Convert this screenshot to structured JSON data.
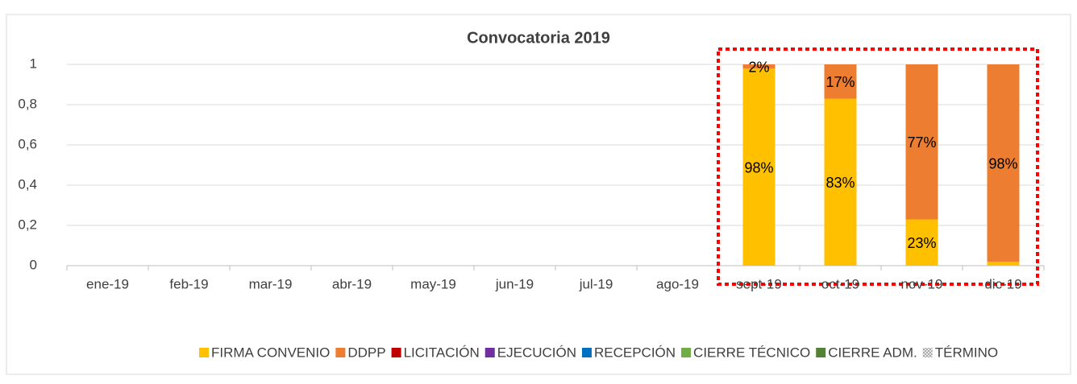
{
  "chart_data": {
    "type": "stacked_bar",
    "title": "Convocatoria 2019",
    "categories": [
      "ene-19",
      "feb-19",
      "mar-19",
      "abr-19",
      "may-19",
      "jun-19",
      "jul-19",
      "ago-19",
      "sept-19",
      "oct-19",
      "nov-19",
      "dic-19"
    ],
    "series": [
      {
        "name": "FIRMA CONVENIO",
        "color": "#ffc000",
        "values": [
          null,
          null,
          null,
          null,
          null,
          null,
          null,
          null,
          0.98,
          0.83,
          0.23,
          0.02
        ],
        "value_labels": [
          null,
          null,
          null,
          null,
          null,
          null,
          null,
          null,
          "98%",
          "83%",
          "23%",
          null
        ]
      },
      {
        "name": "DDPP",
        "color": "#ed7d31",
        "values": [
          null,
          null,
          null,
          null,
          null,
          null,
          null,
          null,
          0.02,
          0.17,
          0.77,
          0.98
        ],
        "value_labels": [
          null,
          null,
          null,
          null,
          null,
          null,
          null,
          null,
          "2%",
          "17%",
          "77%",
          "98%"
        ]
      },
      {
        "name": "LICITACIÓN",
        "color": "#c00000",
        "values": [
          null,
          null,
          null,
          null,
          null,
          null,
          null,
          null,
          null,
          null,
          null,
          null
        ]
      },
      {
        "name": "EJECUCIÓN",
        "color": "#7030a0",
        "values": [
          null,
          null,
          null,
          null,
          null,
          null,
          null,
          null,
          null,
          null,
          null,
          null
        ]
      },
      {
        "name": "RECEPCIÓN",
        "color": "#0070c0",
        "values": [
          null,
          null,
          null,
          null,
          null,
          null,
          null,
          null,
          null,
          null,
          null,
          null
        ]
      },
      {
        "name": "CIERRE TÉCNICO",
        "color": "#70ad47",
        "values": [
          null,
          null,
          null,
          null,
          null,
          null,
          null,
          null,
          null,
          null,
          null,
          null
        ]
      },
      {
        "name": "CIERRE ADM.",
        "color": "#548235",
        "values": [
          null,
          null,
          null,
          null,
          null,
          null,
          null,
          null,
          null,
          null,
          null,
          null
        ]
      },
      {
        "name": "TÉRMINO",
        "color": "#a5a5a5",
        "pattern": "hatch",
        "values": [
          null,
          null,
          null,
          null,
          null,
          null,
          null,
          null,
          null,
          null,
          null,
          null
        ]
      }
    ],
    "ylim": [
      0,
      1
    ],
    "yticks": [
      0,
      {
        "value": 0.2,
        "label": "0,2"
      },
      {
        "value": 0.4,
        "label": "0,4"
      },
      {
        "value": 0.6,
        "label": "0,6"
      },
      {
        "value": 0.8,
        "label": "0,8"
      },
      1
    ],
    "grid": true,
    "legend": "bottom"
  }
}
